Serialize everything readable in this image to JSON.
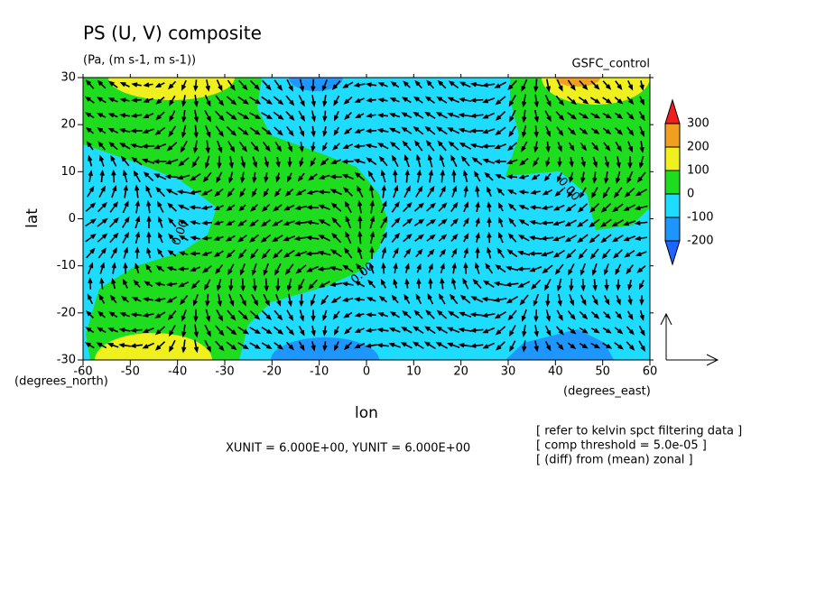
{
  "chart_data": {
    "type": "contour",
    "title": "PS (U, V) composite",
    "subtitle": "(Pa, (m s-1, m s-1))",
    "label_right": "GSFC_control",
    "xlabel": "lon",
    "ylabel": "lat",
    "x_unit_label": "(degrees_east)",
    "y_unit_label": "(degrees_north)",
    "xlim": [
      -60,
      60
    ],
    "xticks": [
      -60,
      -50,
      -40,
      -30,
      -20,
      -10,
      0,
      10,
      20,
      30,
      40,
      50,
      60
    ],
    "ylim": [
      -30,
      30
    ],
    "yticks": [
      -30,
      -20,
      -10,
      0,
      10,
      20,
      30
    ],
    "colorbar": {
      "levels": [
        -200,
        -100,
        0,
        100,
        200,
        300
      ],
      "colors": [
        "#1e64ff",
        "#1e96ff",
        "#1edcff",
        "#1edc1e",
        "#f0f01e",
        "#f0a01e",
        "#f01e1e"
      ]
    },
    "contour_labels": [
      "0.00",
      "0.00",
      "0.00"
    ],
    "vector_scale_text": "XUNIT = 6.000E+00, YUNIT = 6.000E+00",
    "notes": [
      "[ refer to kelvin spct filtering data ]",
      "[ comp threshold = 5.0e-05 ]",
      "[ (diff) from (mean) zonal ]"
    ]
  }
}
